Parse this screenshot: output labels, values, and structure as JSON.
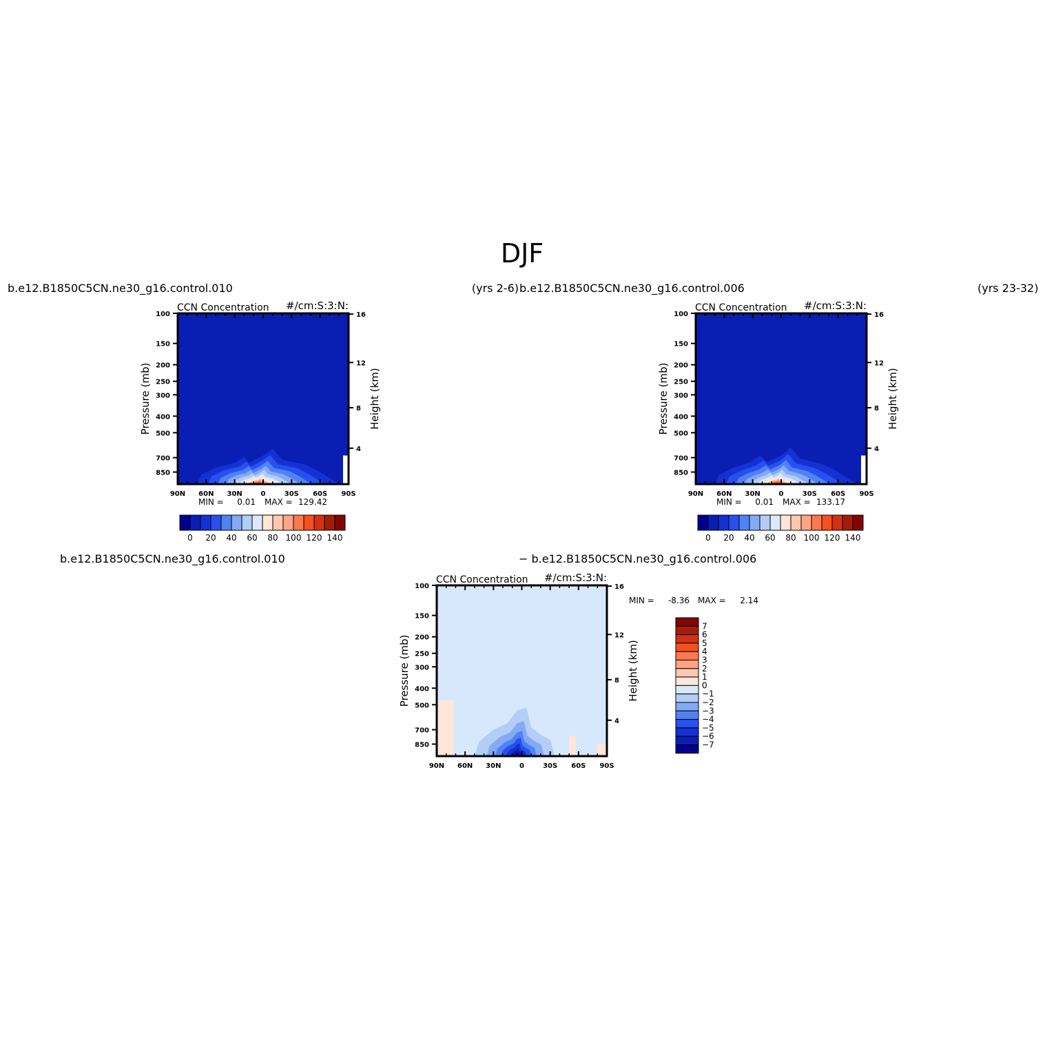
{
  "figure": {
    "title": "DJF",
    "case_a": "b.e12.B1850C5CN.ne30_g16.control.010",
    "case_a_years": "(yrs 2-6)",
    "case_b": "b.e12.B1850C5CN.ne30_g16.control.006",
    "case_b_years": "(yrs 23-32)",
    "diff_left_title": "b.e12.B1850C5CN.ne30_g16.control.010",
    "diff_right_title": "− b.e12.B1850C5CN.ne30_g16.control.006"
  },
  "chart_data": [
    {
      "type": "heatmap",
      "title": "CCN Concentration",
      "units": "#/cm:S:3:N:",
      "xlabel": "",
      "ylabel": "Pressure (mb)",
      "ylabel_right": "Height (km)",
      "x_ticks": [
        "90N",
        "60N",
        "30N",
        "0",
        "30S",
        "60S",
        "90S"
      ],
      "y_ticks": [
        100,
        150,
        200,
        250,
        300,
        400,
        500,
        700,
        850
      ],
      "y_right_ticks": [
        16,
        12,
        8,
        4
      ],
      "ylim": [
        100,
        1000
      ],
      "min_label": "MIN =",
      "min_value": "0.01",
      "max_label": "MAX =",
      "max_value": "129.42",
      "colorbar_labels": [
        "0",
        "20",
        "40",
        "60",
        "80",
        "100",
        "120",
        "140"
      ],
      "colors": [
        "#00008c",
        "#0a1eb4",
        "#1432d2",
        "#2850f0",
        "#5082f5",
        "#82aaf5",
        "#b4cdf7",
        "#dce9fb",
        "#ffe6d7",
        "#ffc8af",
        "#ffa587",
        "#ff7850",
        "#f5501e",
        "#d2320f",
        "#a01e0a",
        "#820505"
      ],
      "background_level": 1,
      "plume": [
        {
          "lat": -80,
          "p": 1000
        },
        {
          "lat": -60,
          "p": 850
        },
        {
          "lat": -45,
          "p": 770
        },
        {
          "lat": -20,
          "p": 720
        },
        {
          "lat": -10,
          "p": 620
        },
        {
          "lat": 0,
          "p": 680
        },
        {
          "lat": 15,
          "p": 750
        },
        {
          "lat": 20,
          "p": 690
        },
        {
          "lat": 30,
          "p": 750
        },
        {
          "lat": 50,
          "p": 800
        },
        {
          "lat": 65,
          "p": 880
        },
        {
          "lat": 70,
          "p": 1000
        }
      ]
    },
    {
      "type": "heatmap",
      "title": "CCN Concentration",
      "units": "#/cm:S:3:N:",
      "xlabel": "",
      "ylabel": "Pressure (mb)",
      "ylabel_right": "Height (km)",
      "x_ticks": [
        "90N",
        "60N",
        "30N",
        "0",
        "30S",
        "60S",
        "90S"
      ],
      "y_ticks": [
        100,
        150,
        200,
        250,
        300,
        400,
        500,
        700,
        850
      ],
      "y_right_ticks": [
        16,
        12,
        8,
        4
      ],
      "ylim": [
        100,
        1000
      ],
      "min_label": "MIN =",
      "min_value": "0.01",
      "max_label": "MAX =",
      "max_value": "133.17",
      "colorbar_labels": [
        "0",
        "20",
        "40",
        "60",
        "80",
        "100",
        "120",
        "140"
      ],
      "colors": [
        "#00008c",
        "#0a1eb4",
        "#1432d2",
        "#2850f0",
        "#5082f5",
        "#82aaf5",
        "#b4cdf7",
        "#dce9fb",
        "#ffe6d7",
        "#ffc8af",
        "#ffa587",
        "#ff7850",
        "#f5501e",
        "#d2320f",
        "#a01e0a",
        "#820505"
      ],
      "background_level": 1,
      "plume": [
        {
          "lat": -80,
          "p": 1000
        },
        {
          "lat": -60,
          "p": 850
        },
        {
          "lat": -45,
          "p": 770
        },
        {
          "lat": -20,
          "p": 710
        },
        {
          "lat": -10,
          "p": 610
        },
        {
          "lat": 0,
          "p": 680
        },
        {
          "lat": 15,
          "p": 740
        },
        {
          "lat": 22,
          "p": 680
        },
        {
          "lat": 32,
          "p": 740
        },
        {
          "lat": 50,
          "p": 800
        },
        {
          "lat": 65,
          "p": 880
        },
        {
          "lat": 70,
          "p": 1000
        }
      ]
    },
    {
      "type": "heatmap",
      "title": "CCN Concentration",
      "units": "#/cm:S:3:N:",
      "xlabel": "",
      "ylabel": "Pressure (mb)",
      "ylabel_right": "Height (km)",
      "x_ticks": [
        "90N",
        "60N",
        "30N",
        "0",
        "30S",
        "60S",
        "90S"
      ],
      "y_ticks": [
        100,
        150,
        200,
        250,
        300,
        400,
        500,
        700,
        850
      ],
      "y_right_ticks": [
        16,
        12,
        8,
        4
      ],
      "ylim": [
        100,
        1000
      ],
      "min_label": "MIN =",
      "min_value": "-8.36",
      "max_label": "MAX =",
      "max_value": "2.14",
      "colorbar_labels": [
        "7",
        "6",
        "5",
        "4",
        "3",
        "2",
        "1",
        "0",
        "−1",
        "−2",
        "−3",
        "−4",
        "−5",
        "−6",
        "−7"
      ],
      "colors": [
        "#820505",
        "#a01e0a",
        "#d2320f",
        "#f5501e",
        "#ff7850",
        "#ffa587",
        "#ffc8af",
        "#ffe6d7",
        "#d7e8fd",
        "#b4cdf7",
        "#82aaf5",
        "#5082f5",
        "#2850f0",
        "#1432d2",
        "#0a1eb4",
        "#00008c"
      ],
      "background_color": "#d7e8fd",
      "negative_plume": [
        {
          "lat": -35,
          "p": 1000
        },
        {
          "lat": -30,
          "p": 800
        },
        {
          "lat": -20,
          "p": 750
        },
        {
          "lat": -10,
          "p": 680
        },
        {
          "lat": -5,
          "p": 520
        },
        {
          "lat": 5,
          "p": 540
        },
        {
          "lat": 15,
          "p": 640
        },
        {
          "lat": 30,
          "p": 700
        },
        {
          "lat": 45,
          "p": 820
        },
        {
          "lat": 50,
          "p": 1000
        }
      ],
      "positive_patches": [
        {
          "lat_min": 72,
          "lat_max": 90,
          "p_top": 470,
          "p_bottom": 1000
        },
        {
          "lat_min": -90,
          "lat_max": -80,
          "p_top": 850,
          "p_bottom": 1000
        },
        {
          "lat_min": -57,
          "lat_max": -50,
          "p_top": 760,
          "p_bottom": 1000
        }
      ]
    }
  ]
}
